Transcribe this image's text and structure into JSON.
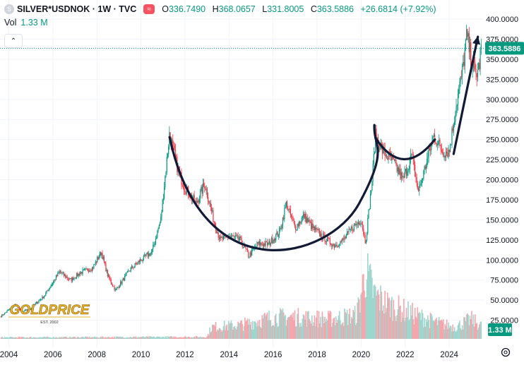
{
  "header": {
    "title": "SILVER*USDNOK · 1W · TVC",
    "symbol_icon": "silver-coin-icon",
    "indicator_icon": "wave-icon",
    "ohlc": [
      {
        "key": "O",
        "value": "336.7490"
      },
      {
        "key": "H",
        "value": "368.0657"
      },
      {
        "key": "L",
        "value": "331.8005"
      },
      {
        "key": "C",
        "value": "363.5886"
      }
    ],
    "change": "+26.6814 (+7.92%)"
  },
  "volume": {
    "label": "Vol",
    "value": "1.33 M",
    "badge": "1.33 M"
  },
  "collapse_icon": "chevron-up-icon",
  "settings_icon": "gear-icon",
  "price_badge": "363.5886",
  "watermark": {
    "brand": "GOLDPRICE",
    "est": "EST. 2002"
  },
  "colors": {
    "up": "#089981",
    "down": "#f23645",
    "volume_up": "#9ed6cd",
    "volume_down": "#f5a6ad",
    "annotation": "#131a35",
    "gold": "#e8b429"
  },
  "chart_data": {
    "type": "candlestick",
    "title": "SILVER*USDNOK · 1W · TVC",
    "y_ticks": [
      "400.0000",
      "375.0000",
      "350.0000",
      "325.0000",
      "300.0000",
      "275.0000",
      "250.0000",
      "225.0000",
      "200.0000",
      "175.0000",
      "150.0000",
      "125.0000",
      "100.0000",
      "75.0000",
      "50.0000",
      "25.0000"
    ],
    "x_ticks": [
      "2004",
      "2006",
      "2008",
      "2010",
      "2012",
      "2014",
      "2016",
      "2018",
      "2020",
      "2022",
      "2024"
    ],
    "ylim": [
      0,
      412
    ],
    "xlim": [
      2003.6,
      2025.6
    ],
    "last_price": 363.5886,
    "series": [
      {
        "name": "Price",
        "anchors": [
          [
            2003.65,
            30
          ],
          [
            2004.3,
            45
          ],
          [
            2004.6,
            35
          ],
          [
            2005.0,
            40
          ],
          [
            2005.6,
            55
          ],
          [
            2006.3,
            85
          ],
          [
            2006.8,
            75
          ],
          [
            2007.3,
            85
          ],
          [
            2007.8,
            90
          ],
          [
            2008.2,
            110
          ],
          [
            2008.5,
            80
          ],
          [
            2008.85,
            62
          ],
          [
            2009.5,
            88
          ],
          [
            2010.0,
            100
          ],
          [
            2010.5,
            110
          ],
          [
            2010.9,
            150
          ],
          [
            2011.3,
            258
          ],
          [
            2011.7,
            210
          ],
          [
            2012.0,
            190
          ],
          [
            2012.5,
            170
          ],
          [
            2012.9,
            195
          ],
          [
            2013.3,
            150
          ],
          [
            2013.6,
            125
          ],
          [
            2014.0,
            130
          ],
          [
            2014.5,
            125
          ],
          [
            2014.9,
            105
          ],
          [
            2015.3,
            120
          ],
          [
            2015.8,
            120
          ],
          [
            2016.3,
            135
          ],
          [
            2016.6,
            170
          ],
          [
            2017.0,
            140
          ],
          [
            2017.4,
            155
          ],
          [
            2017.8,
            140
          ],
          [
            2018.2,
            130
          ],
          [
            2018.8,
            118
          ],
          [
            2019.2,
            125
          ],
          [
            2019.6,
            140
          ],
          [
            2020.0,
            150
          ],
          [
            2020.2,
            122
          ],
          [
            2020.5,
            200
          ],
          [
            2020.65,
            255
          ],
          [
            2021.0,
            235
          ],
          [
            2021.5,
            220
          ],
          [
            2021.9,
            200
          ],
          [
            2022.3,
            230
          ],
          [
            2022.6,
            185
          ],
          [
            2022.9,
            215
          ],
          [
            2023.3,
            255
          ],
          [
            2023.7,
            235
          ],
          [
            2024.0,
            235
          ],
          [
            2024.3,
            290
          ],
          [
            2024.6,
            335
          ],
          [
            2024.8,
            380
          ],
          [
            2025.0,
            350
          ],
          [
            2025.2,
            330
          ],
          [
            2025.35,
            340
          ],
          [
            2025.45,
            363.59
          ]
        ]
      },
      {
        "name": "Vol",
        "anchors": [
          [
            2003.65,
            0.15
          ],
          [
            2013.0,
            0.2
          ],
          [
            2013.2,
            1.2
          ],
          [
            2014.5,
            1.4
          ],
          [
            2016.0,
            2.2
          ],
          [
            2017.0,
            2.2
          ],
          [
            2018.5,
            2.0
          ],
          [
            2019.8,
            2.4
          ],
          [
            2020.2,
            6.8
          ],
          [
            2020.6,
            4.5
          ],
          [
            2021.2,
            3.5
          ],
          [
            2022.5,
            2.4
          ],
          [
            2023.5,
            1.6
          ],
          [
            2024.3,
            1.2
          ],
          [
            2025.0,
            2.0
          ],
          [
            2025.45,
            1.33
          ]
        ],
        "unit": "M"
      }
    ],
    "annotations": [
      {
        "name": "cup",
        "shape": "arc"
      },
      {
        "name": "handle",
        "shape": "arc"
      },
      {
        "name": "breakout",
        "shape": "arrow-up"
      }
    ],
    "grid": true
  }
}
